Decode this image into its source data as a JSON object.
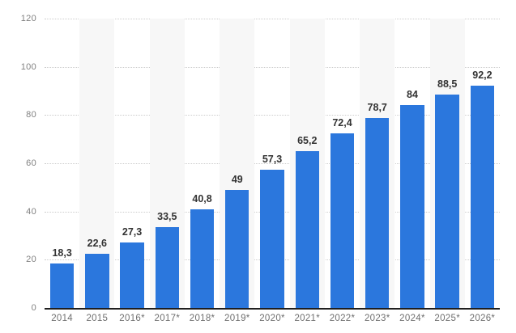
{
  "chart_data": {
    "type": "bar",
    "title": "",
    "xlabel": "",
    "ylabel": "",
    "categories": [
      "2014",
      "2015",
      "2016*",
      "2017*",
      "2018*",
      "2019*",
      "2020*",
      "2021*",
      "2022*",
      "2023*",
      "2024*",
      "2025*",
      "2026*"
    ],
    "values": [
      18.3,
      22.6,
      27.3,
      33.5,
      40.8,
      49,
      57.3,
      65.2,
      72.4,
      78.7,
      84,
      88.5,
      92.2
    ],
    "value_labels": [
      "18,3",
      "22,6",
      "27,3",
      "33,5",
      "40,8",
      "49",
      "57,3",
      "65,2",
      "72,4",
      "78,7",
      "84",
      "88,5",
      "92,2"
    ],
    "decimal_separator": "comma",
    "ylim": [
      0,
      120
    ],
    "yticks": [
      0,
      20,
      40,
      60,
      80,
      100,
      120
    ],
    "grid": true,
    "gridline_style": "dotted",
    "legend": false,
    "colors": {
      "bar": "#2b77dd",
      "column_band": "#f7f7f7",
      "gridline": "#cccccc",
      "axis_line": "#1f1f1f",
      "tick_label": "#808080",
      "x_label": "#6f6f6f",
      "value_label": "#333333",
      "background": "#ffffff"
    },
    "alternating_column_bands": "odd-index-columns"
  }
}
